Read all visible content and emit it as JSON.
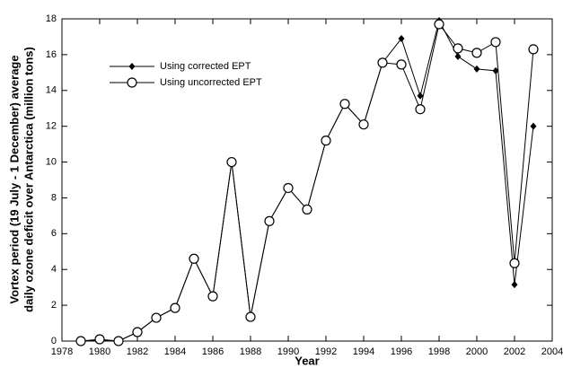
{
  "chart_data": {
    "type": "line",
    "xlabel": "Year",
    "ylabel": [
      "Vortex period (19 July - 1 December) average",
      "daily ozone deficit over Antarctica (million tons)"
    ],
    "x": [
      1979,
      1980,
      1981,
      1982,
      1983,
      1984,
      1985,
      1986,
      1987,
      1988,
      1989,
      1990,
      1991,
      1992,
      1993,
      1994,
      1995,
      1996,
      1997,
      1998,
      1999,
      2000,
      2001,
      2002,
      2003
    ],
    "series": [
      {
        "name": "Using corrected EPT",
        "color": "#000000",
        "marker": "diamond",
        "values": [
          0,
          0.05,
          0,
          0.5,
          1.3,
          1.85,
          4.6,
          2.5,
          10.0,
          1.35,
          6.7,
          8.55,
          7.35,
          11.2,
          13.25,
          12.1,
          15.55,
          16.9,
          13.7,
          17.9,
          15.9,
          15.2,
          15.1,
          3.15,
          12.0
        ]
      },
      {
        "name": "Using uncorrected EPT",
        "color": "#000000",
        "marker": "circle",
        "values": [
          0,
          0.1,
          0,
          0.5,
          1.3,
          1.85,
          4.6,
          2.5,
          10.0,
          1.35,
          6.7,
          8.55,
          7.35,
          11.2,
          13.25,
          12.1,
          15.55,
          15.45,
          12.95,
          17.7,
          16.35,
          16.1,
          16.7,
          4.35,
          16.3
        ]
      }
    ],
    "xlim": [
      1978,
      2004
    ],
    "xticks": [
      1978,
      1980,
      1982,
      1984,
      1986,
      1988,
      1990,
      1992,
      1994,
      1996,
      1998,
      2000,
      2002,
      2004
    ],
    "ylim": [
      0,
      18
    ],
    "yticks": [
      0,
      2,
      4,
      6,
      8,
      10,
      12,
      14,
      16,
      18
    ],
    "legend": "upper-left"
  }
}
